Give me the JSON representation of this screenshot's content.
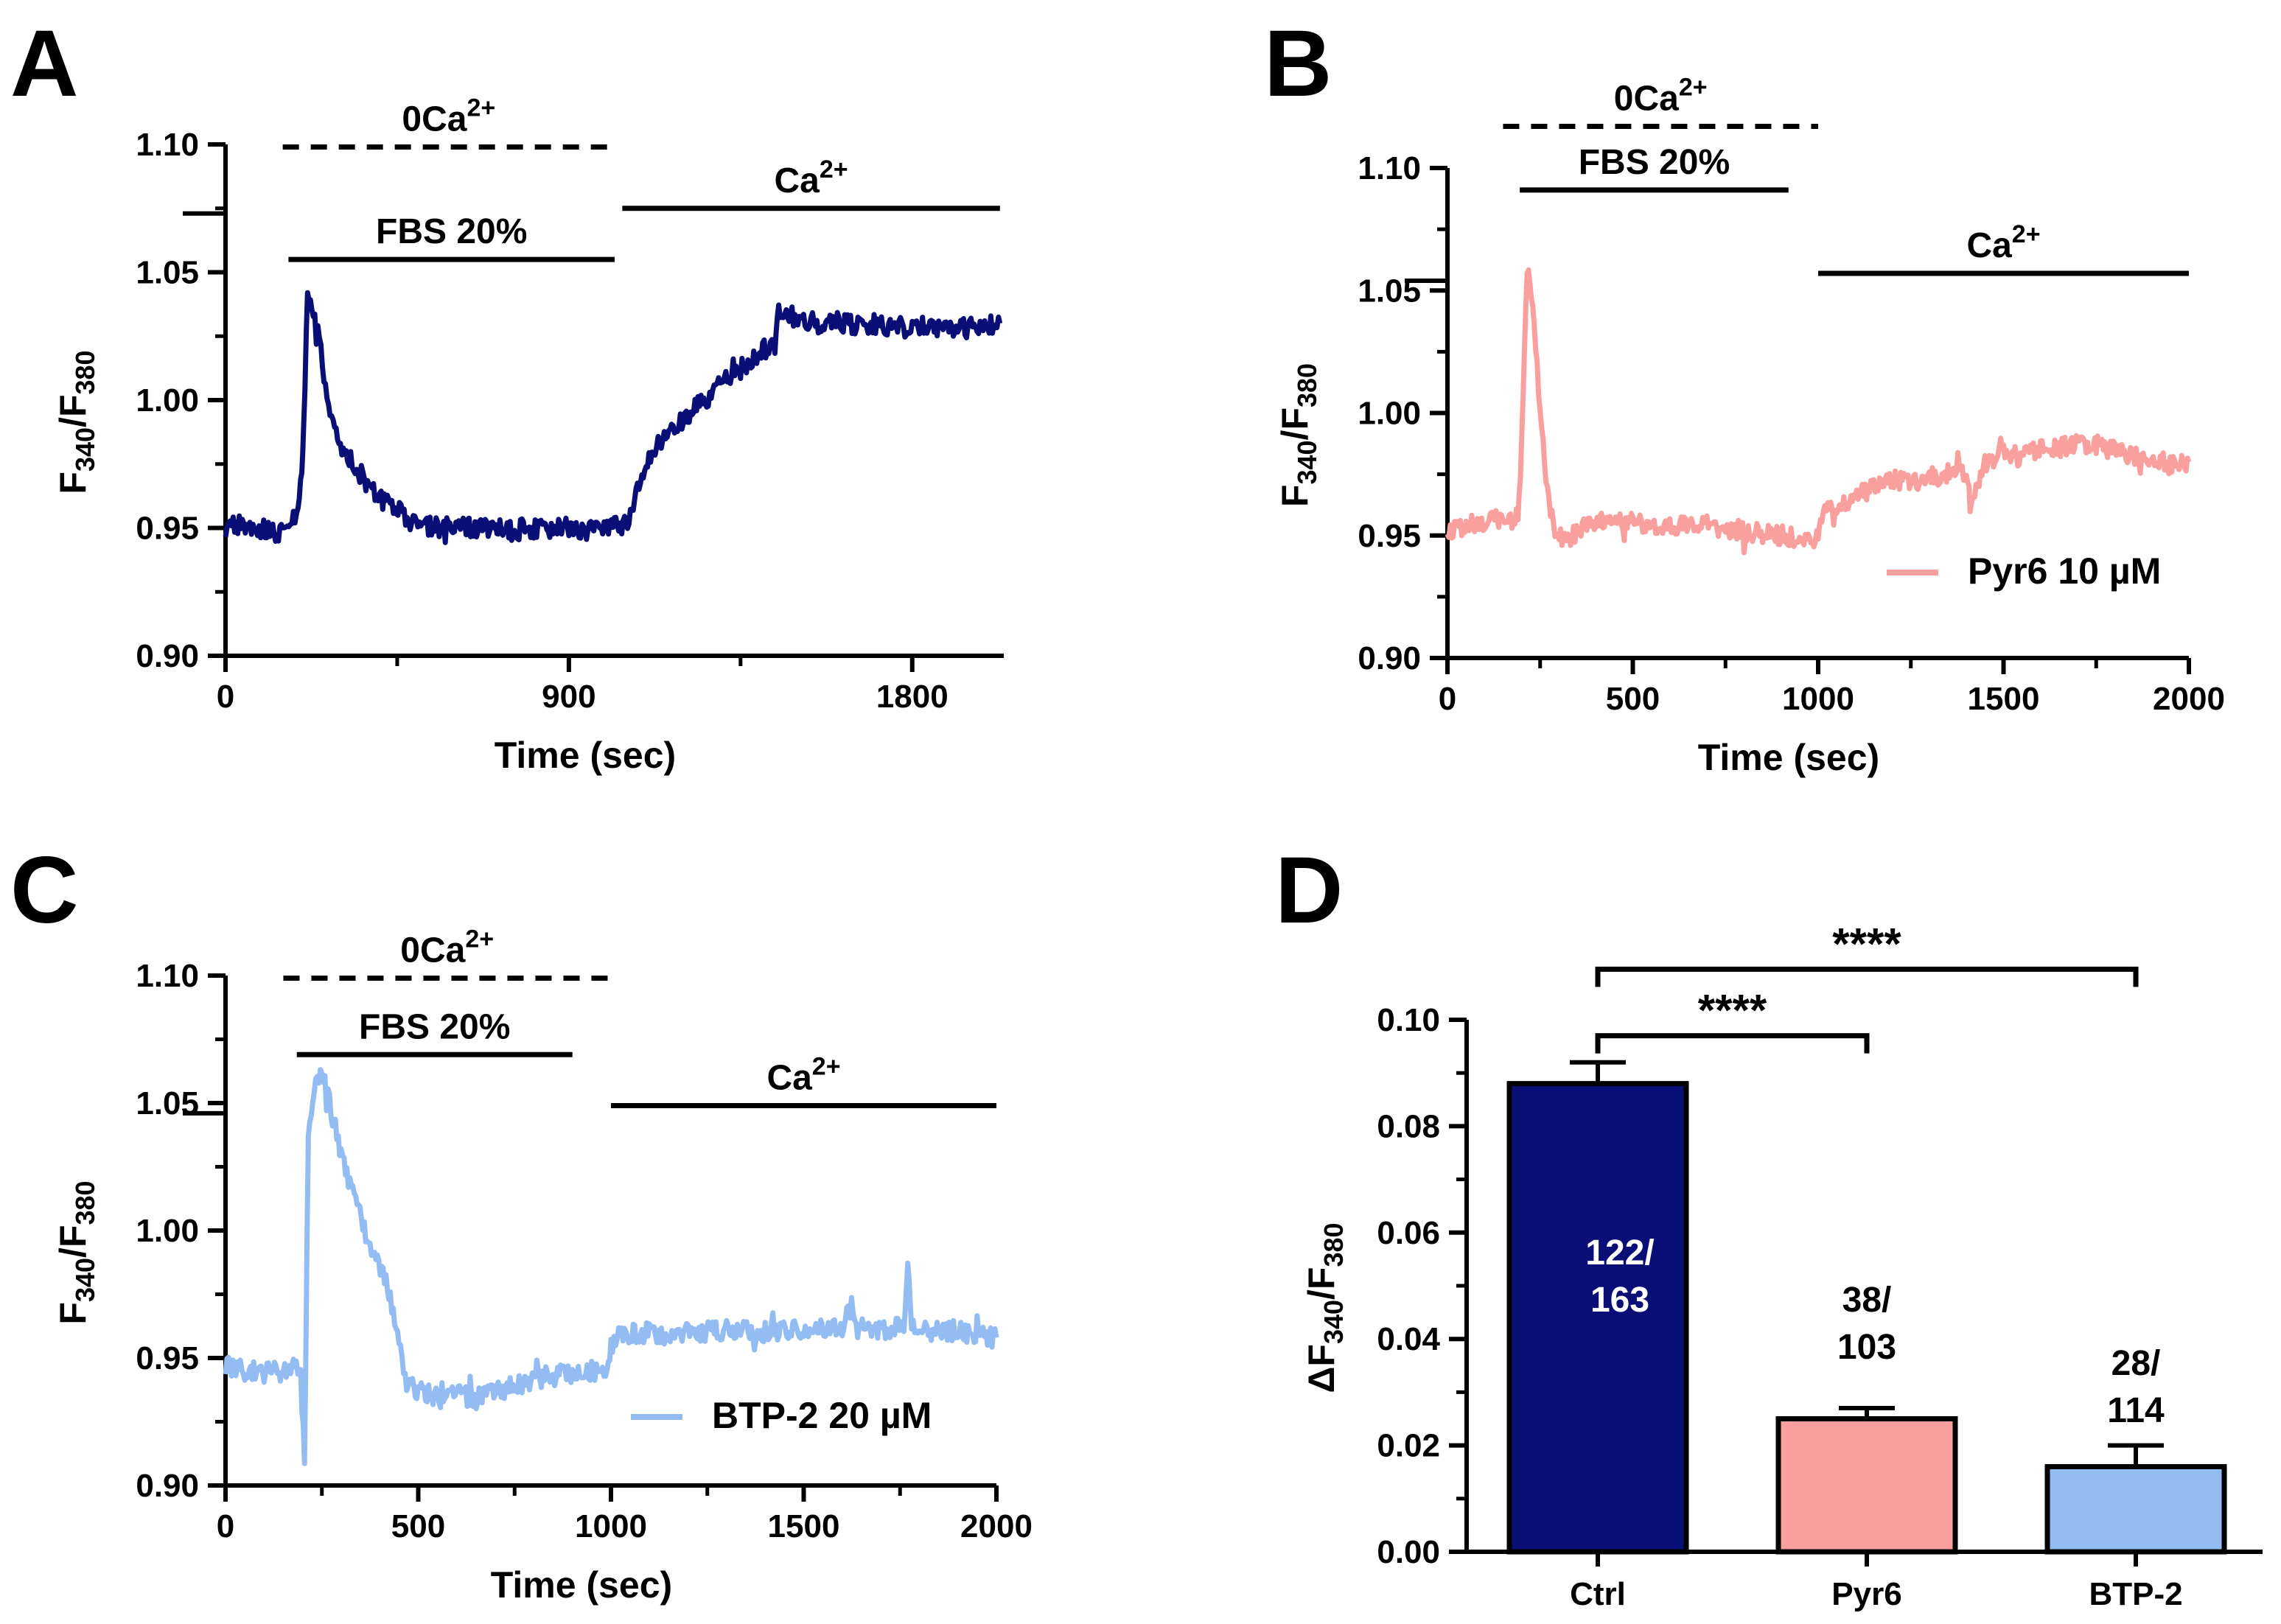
{
  "colors": {
    "ctrl": "#0a0f78",
    "pyr6": "#f9a09f",
    "btp2": "#93bdf2",
    "ink": "#000000"
  },
  "panels": {
    "A": {
      "letter": "A"
    },
    "B": {
      "letter": "B"
    },
    "C": {
      "letter": "C"
    },
    "D": {
      "letter": "D"
    }
  },
  "chart_data": [
    {
      "panel": "A",
      "type": "line",
      "xlabel": "Time (sec)",
      "ylabel": "F340/F380",
      "ylabel_main": "F",
      "ylabel_sub1": "340",
      "ylabel_mid": "/F",
      "ylabel_sub2": "380",
      "xlim": [
        0,
        2040
      ],
      "ylim": [
        0.9,
        1.1
      ],
      "xticks": [
        0,
        900,
        1800
      ],
      "xtick_labels": [
        "0",
        "900",
        "1800"
      ],
      "xminor": [
        450,
        1350
      ],
      "yticks": [
        0.9,
        0.95,
        1.0,
        1.05,
        1.1
      ],
      "ytick_labels": [
        "0.90",
        "0.95",
        "1.00",
        "1.05",
        "1.10"
      ],
      "legend": null,
      "series": [
        {
          "name": "Ctrl",
          "color_key": "ctrl",
          "x": [
            0,
            60,
            120,
            150,
            170,
            190,
            200,
            205,
            215,
            230,
            250,
            270,
            290,
            320,
            360,
            400,
            440,
            480,
            520,
            560,
            600,
            650,
            700,
            750,
            800,
            850,
            900,
            950,
            1000,
            1050,
            1080,
            1110,
            1150,
            1200,
            1250,
            1300,
            1350,
            1400,
            1440,
            1450,
            1470,
            1500,
            1550,
            1600,
            1650,
            1700,
            1750,
            1800,
            1850,
            1900,
            1950,
            2030
          ],
          "y": [
            0.95,
            0.952,
            0.948,
            0.949,
            0.951,
            0.956,
            0.975,
            0.992,
            1.04,
            1.036,
            1.018,
            0.995,
            0.986,
            0.978,
            0.97,
            0.962,
            0.958,
            0.953,
            0.951,
            0.95,
            0.95,
            0.95,
            0.95,
            0.949,
            0.95,
            0.949,
            0.95,
            0.949,
            0.95,
            0.952,
            0.966,
            0.978,
            0.985,
            0.992,
            0.999,
            1.006,
            1.012,
            1.019,
            1.022,
            1.036,
            1.034,
            1.032,
            1.03,
            1.031,
            1.029,
            1.03,
            1.028,
            1.029,
            1.028,
            1.029,
            1.028,
            1.03
          ]
        }
      ],
      "annotations": [
        {
          "label": "0Ca",
          "sup": "2+",
          "style": "dashed",
          "x_start": 150,
          "x_end": 1020,
          "y": 1.099
        },
        {
          "label": "FBS 20%",
          "style": "solid",
          "x_start": 165,
          "x_end": 1020,
          "y": 1.055
        },
        {
          "label": "Ca",
          "sup": "2+",
          "style": "solid",
          "x_start": 1040,
          "x_end": 2030,
          "y": 1.075
        }
      ],
      "axis_break_y": 1.073
    },
    {
      "panel": "B",
      "type": "line",
      "xlabel": "Time (sec)",
      "ylabel": "F340/F380",
      "ylabel_main": "F",
      "ylabel_sub1": "340",
      "ylabel_mid": "/F",
      "ylabel_sub2": "380",
      "xlim": [
        0,
        2000
      ],
      "ylim": [
        0.9,
        1.1
      ],
      "xticks": [
        0,
        500,
        1000,
        1500,
        2000
      ],
      "xtick_labels": [
        "0",
        "500",
        "1000",
        "1500",
        "2000"
      ],
      "xminor": [
        250,
        750,
        1250,
        1750
      ],
      "yticks": [
        0.9,
        0.95,
        1.0,
        1.05,
        1.1
      ],
      "ytick_labels": [
        "0.90",
        "0.95",
        "1.00",
        "1.05",
        "1.10"
      ],
      "legend": "Pyr6 10 µM",
      "series": [
        {
          "name": "Pyr6 10 µM",
          "color_key": "pyr6",
          "x": [
            0,
            50,
            100,
            150,
            190,
            200,
            215,
            230,
            250,
            270,
            290,
            320,
            360,
            400,
            450,
            500,
            550,
            600,
            650,
            700,
            750,
            800,
            850,
            900,
            950,
            1000,
            1010,
            1050,
            1100,
            1150,
            1200,
            1250,
            1300,
            1350,
            1400,
            1410,
            1450,
            1500,
            1550,
            1600,
            1650,
            1700,
            1750,
            1800,
            1850,
            1900,
            1950,
            2000
          ],
          "y": [
            0.95,
            0.955,
            0.956,
            0.957,
            0.958,
            0.985,
            1.06,
            1.045,
            1.0,
            0.968,
            0.952,
            0.948,
            0.953,
            0.955,
            0.956,
            0.955,
            0.955,
            0.954,
            0.955,
            0.954,
            0.953,
            0.952,
            0.951,
            0.95,
            0.949,
            0.948,
            0.958,
            0.963,
            0.966,
            0.969,
            0.973,
            0.972,
            0.974,
            0.975,
            0.976,
            0.962,
            0.98,
            0.983,
            0.982,
            0.985,
            0.986,
            0.988,
            0.987,
            0.985,
            0.983,
            0.981,
            0.979,
            0.98
          ]
        }
      ],
      "annotations": [
        {
          "label": "0Ca",
          "sup": "2+",
          "style": "dashed",
          "x_start": 150,
          "x_end": 1000,
          "y": 1.117
        },
        {
          "label": "FBS 20%",
          "style": "solid",
          "x_start": 195,
          "x_end": 920,
          "y": 1.091
        },
        {
          "label": "Ca",
          "sup": "2+",
          "style": "solid",
          "x_start": 1000,
          "x_end": 2000,
          "y": 1.057
        }
      ],
      "axis_break_y": 1.054
    },
    {
      "panel": "C",
      "type": "line",
      "xlabel": "Time (sec)",
      "ylabel": "F340/F380",
      "ylabel_main": "F",
      "ylabel_sub1": "340",
      "ylabel_mid": "/F",
      "ylabel_sub2": "380",
      "xlim": [
        0,
        2000
      ],
      "ylim": [
        0.9,
        1.1
      ],
      "xticks": [
        0,
        500,
        1000,
        1500,
        2000
      ],
      "xtick_labels": [
        "0",
        "500",
        "1000",
        "1500",
        "2000"
      ],
      "xminor": [
        250,
        750,
        1250,
        1750
      ],
      "yticks": [
        0.9,
        0.95,
        1.0,
        1.05,
        1.1
      ],
      "ytick_labels": [
        "0.90",
        "0.95",
        "1.00",
        "1.05",
        "1.10"
      ],
      "legend": "BTP-2 20 µM",
      "series": [
        {
          "name": "BTP-2 20 µM",
          "color_key": "btp2",
          "x": [
            0,
            50,
            100,
            150,
            180,
            195,
            205,
            215,
            230,
            250,
            270,
            300,
            330,
            360,
            390,
            420,
            450,
            470,
            500,
            550,
            600,
            650,
            700,
            750,
            800,
            850,
            900,
            950,
            990,
            1000,
            1020,
            1050,
            1100,
            1150,
            1200,
            1300,
            1400,
            1500,
            1600,
            1620,
            1640,
            1700,
            1760,
            1770,
            1780,
            1800,
            1850,
            1900,
            1950,
            2000
          ],
          "y": [
            0.947,
            0.945,
            0.944,
            0.945,
            0.946,
            0.942,
            0.91,
            1.04,
            1.058,
            1.062,
            1.05,
            1.03,
            1.015,
            1.0,
            0.99,
            0.98,
            0.955,
            0.94,
            0.937,
            0.935,
            0.936,
            0.934,
            0.937,
            0.939,
            0.942,
            0.943,
            0.944,
            0.945,
            0.944,
            0.955,
            0.958,
            0.96,
            0.96,
            0.959,
            0.96,
            0.961,
            0.96,
            0.961,
            0.962,
            0.975,
            0.962,
            0.961,
            0.963,
            0.985,
            0.962,
            0.961,
            0.96,
            0.961,
            0.959,
            0.958
          ]
        }
      ],
      "annotations": [
        {
          "label": "0Ca",
          "sup": "2+",
          "style": "dashed",
          "x_start": 150,
          "x_end": 1000,
          "y": 1.099
        },
        {
          "label": "FBS 20%",
          "style": "solid",
          "x_start": 185,
          "x_end": 900,
          "y": 1.069
        },
        {
          "label": "Ca",
          "sup": "2+",
          "style": "solid",
          "x_start": 1000,
          "x_end": 2000,
          "y": 1.049
        }
      ],
      "axis_break_y": 1.046
    },
    {
      "panel": "D",
      "type": "bar",
      "ylabel": "ΔF340/F380",
      "ylabel_main": "ΔF",
      "ylabel_sub1": "340",
      "ylabel_mid": "/F",
      "ylabel_sub2": "380",
      "ylim": [
        0,
        0.1
      ],
      "yticks": [
        0,
        0.02,
        0.04,
        0.06,
        0.08,
        0.1
      ],
      "ytick_labels": [
        "0.00",
        "0.02",
        "0.04",
        "0.06",
        "0.08",
        "0.10"
      ],
      "categories": [
        "Ctrl",
        "Pyr6",
        "BTP-2"
      ],
      "values": [
        0.088,
        0.025,
        0.016
      ],
      "errors": [
        0.004,
        0.002,
        0.004
      ],
      "color_keys": [
        "ctrl",
        "pyr6",
        "btp2"
      ],
      "counts_top": [
        "122/",
        "38/",
        "28/"
      ],
      "counts_bottom": [
        "163",
        "103",
        "114"
      ],
      "significance": [
        {
          "from": 0,
          "to": 1,
          "label": "****",
          "y": 0.097
        },
        {
          "from": 0,
          "to": 2,
          "label": "****",
          "y": 0.1095
        }
      ]
    }
  ]
}
